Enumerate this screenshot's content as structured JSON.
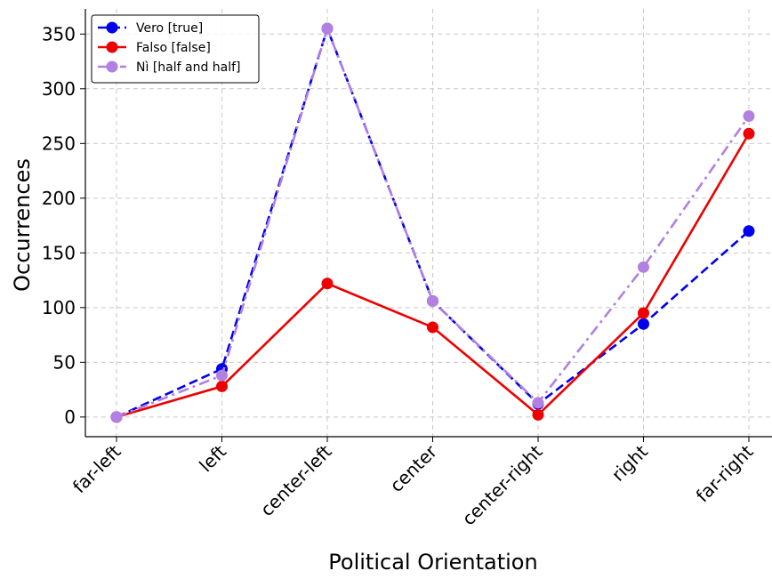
{
  "chart_data": {
    "type": "line",
    "title": "",
    "xlabel": "Political Orientation",
    "ylabel": "Occurrences",
    "categories": [
      "far-left",
      "left",
      "center-left",
      "center",
      "center-right",
      "right",
      "far-right"
    ],
    "yticks": [
      "0",
      "50",
      "100",
      "150",
      "200",
      "250",
      "300",
      "350"
    ],
    "ylim": [
      -18,
      373
    ],
    "grid": true,
    "legend_position": "top-left",
    "series": [
      {
        "name": "Vero [true]",
        "color": "#0000ee",
        "linestyle": "dashed",
        "values": [
          0,
          44,
          355,
          106,
          12,
          85,
          170
        ]
      },
      {
        "name": "Falso [false]",
        "color": "#ee0000",
        "linestyle": "solid",
        "values": [
          0,
          28,
          122,
          82,
          2,
          95,
          259
        ]
      },
      {
        "name": "Nì [half and half]",
        "color": "#b180e0",
        "linestyle": "dashdot",
        "values": [
          0,
          38,
          355,
          106,
          13,
          137,
          275
        ]
      }
    ]
  }
}
